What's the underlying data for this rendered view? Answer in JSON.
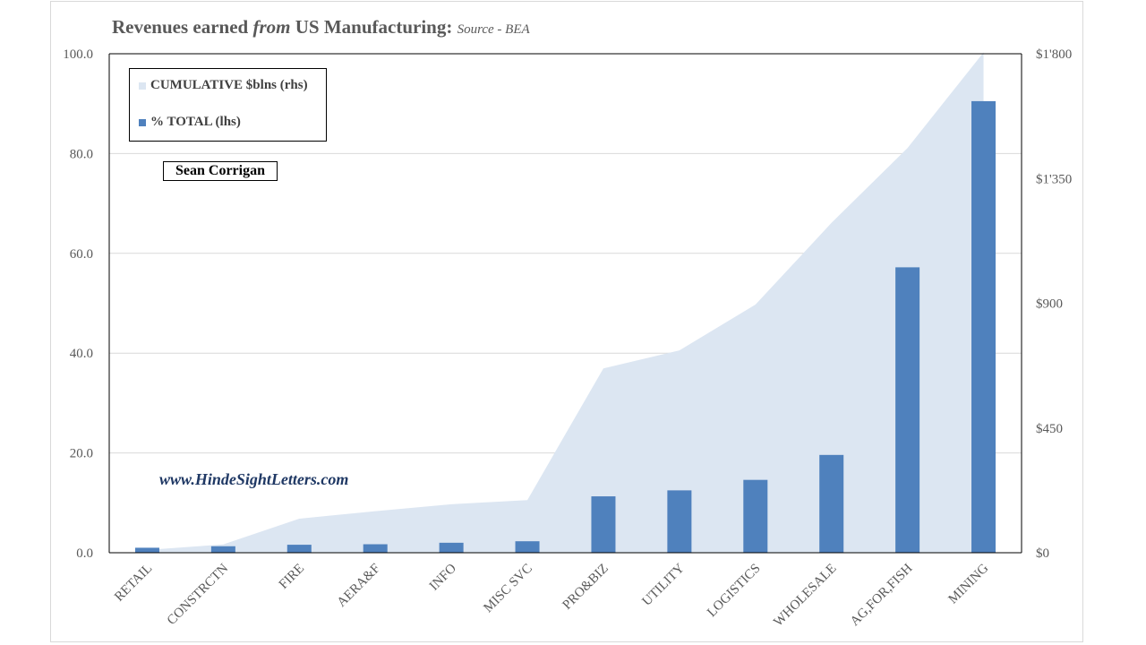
{
  "title": {
    "main": "Revenues earned ",
    "italic": "from",
    "main2": " US Manufacturing: ",
    "source": "Source - BEA"
  },
  "author": "Sean Corrigan",
  "website": "www.HindeSightLetters.com",
  "colors": {
    "bars": "#4f81bd",
    "area": "#dce6f2",
    "text": "#595959",
    "website": "#1f3864"
  },
  "chart_data": {
    "type": "bar",
    "categories": [
      "RETAIL",
      "CONSTRCTN",
      "FIRE",
      "AERA&F",
      "INFO",
      "MISC SVC",
      "PRO&BIZ",
      "UTILITY",
      "LOGISTICS",
      "WHOLESALE",
      "AG,FOR,FISH",
      "MINING"
    ],
    "series": [
      {
        "name": "% TOTAL (lhs)",
        "type": "bar",
        "axis": "left",
        "values": [
          1.0,
          1.3,
          1.6,
          1.7,
          2.0,
          2.3,
          11.3,
          12.5,
          14.6,
          19.6,
          57.2,
          90.5
        ]
      },
      {
        "name": "CUMULATIVE $blns (rhs)",
        "type": "area",
        "axis": "right",
        "values": [
          10,
          30,
          123,
          150,
          175,
          190,
          665,
          730,
          895,
          1190,
          1460,
          1805
        ]
      }
    ],
    "ylim_left": [
      0,
      100
    ],
    "yticks_left": [
      "0.0",
      "20.0",
      "40.0",
      "60.0",
      "80.0",
      "100.0"
    ],
    "ylim_right": [
      0,
      1800
    ],
    "yticks_right": [
      "$0",
      "$450",
      "$900",
      "$1'350",
      "$1'800"
    ],
    "grid": true,
    "legend_position": "top-left"
  }
}
